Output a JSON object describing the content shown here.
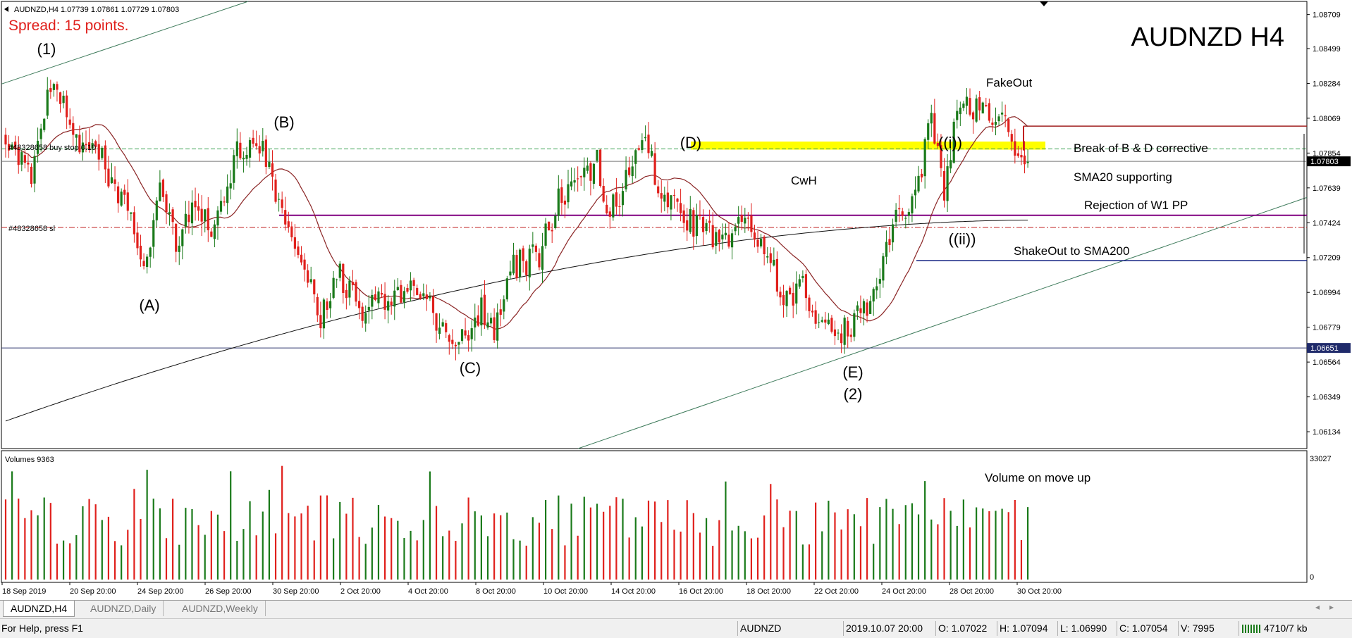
{
  "window": {
    "symbol_header": "AUDNZD,H4  1.07739 1.07861 1.07729 1.07803",
    "spread": "Spread: 15 points.",
    "big_title": "AUDNZD H4"
  },
  "price_axis": {
    "ticks": [
      "1.08709",
      "1.08499",
      "1.08284",
      "1.08069",
      "1.07854",
      "1.07639",
      "1.07424",
      "1.07209",
      "1.06994",
      "1.06779",
      "1.06564",
      "1.06349",
      "1.06134"
    ],
    "current_price": "1.07803",
    "marked_price": "1.06651"
  },
  "orders": {
    "buy_stop": "#48328658 buy stop 0.10",
    "stop_loss": "#48328658 sl"
  },
  "annotations": {
    "wave_1": "(1)",
    "wave_a": "(A)",
    "wave_b": "(B)",
    "wave_c": "(C)",
    "wave_d": "(D)",
    "wave_e": "(E)",
    "wave_2": "(2)",
    "wave_i": "((i))",
    "wave_ii": "((ii))",
    "fakeout": "FakeOut",
    "break_bd": "Break of B & D corrective",
    "sma20": "SMA20 supporting",
    "rejection": "Rejection of W1 PP",
    "shakeout": "ShakeOut to SMA200",
    "cwh": "CwH",
    "volume_note": "Volume on move up"
  },
  "volume_panel": {
    "label": "Volumes 9363",
    "max_tick": "33027",
    "min_tick": "0"
  },
  "time_axis": {
    "labels": [
      "18 Sep 2019",
      "20 Sep 20:00",
      "24 Sep 20:00",
      "26 Sep 20:00",
      "30 Sep 20:00",
      "2 Oct 20:00",
      "4 Oct 20:00",
      "8 Oct 20:00",
      "10 Oct 20:00",
      "14 Oct 20:00",
      "16 Oct 20:00",
      "18 Oct 20:00",
      "22 Oct 20:00",
      "24 Oct 20:00",
      "28 Oct 20:00",
      "30 Oct 20:00"
    ]
  },
  "tabs": [
    {
      "label": "AUDNZD,H4",
      "active": true
    },
    {
      "label": "AUDNZD,Daily",
      "active": false
    },
    {
      "label": "AUDNZD,Weekly",
      "active": false
    }
  ],
  "status": {
    "help": "For Help, press F1",
    "symbol": "AUDNZD",
    "datetime": "2019.10.07 20:00",
    "open": "O: 1.07022",
    "high": "H: 1.07094",
    "low": "L: 1.06990",
    "close": "C: 1.07054",
    "volume": "V: 7995",
    "traffic": "4710/7 kb"
  },
  "colors": {
    "bull": "#1a7a1a",
    "bear": "#e0201c",
    "sma20": "#8b2525",
    "sma200": "#111111",
    "trendline": "#3d7a5a",
    "zone": "#ffff00",
    "pivot_line": "#800080",
    "spread_text": "#e0201c"
  },
  "chart_data": {
    "type": "candlestick",
    "symbol": "AUDNZD",
    "timeframe": "H4",
    "ylim": [
      1.0603,
      1.0879
    ],
    "anchors": [
      [
        0,
        1.0798
      ],
      [
        8,
        1.0775
      ],
      [
        14,
        1.0832
      ],
      [
        22,
        1.0792
      ],
      [
        30,
        1.078
      ],
      [
        38,
        1.0748
      ],
      [
        44,
        1.0718
      ],
      [
        48,
        1.076
      ],
      [
        54,
        1.0722
      ],
      [
        58,
        1.0758
      ],
      [
        64,
        1.074
      ],
      [
        72,
        1.0785
      ],
      [
        80,
        1.0792
      ],
      [
        86,
        1.0745
      ],
      [
        92,
        1.0718
      ],
      [
        98,
        1.0685
      ],
      [
        104,
        1.071
      ],
      [
        110,
        1.069
      ],
      [
        118,
        1.0692
      ],
      [
        124,
        1.0702
      ],
      [
        130,
        1.07
      ],
      [
        136,
        1.0675
      ],
      [
        142,
        1.0673
      ],
      [
        148,
        1.069
      ],
      [
        152,
        1.0678
      ],
      [
        158,
        1.0715
      ],
      [
        166,
        1.0722
      ],
      [
        172,
        1.0758
      ],
      [
        180,
        1.077
      ],
      [
        184,
        1.078
      ],
      [
        188,
        1.0748
      ],
      [
        194,
        1.0772
      ],
      [
        198,
        1.08
      ],
      [
        204,
        1.0762
      ],
      [
        212,
        1.0745
      ],
      [
        218,
        1.0738
      ],
      [
        222,
        1.0725
      ],
      [
        228,
        1.0745
      ],
      [
        236,
        1.0728
      ],
      [
        242,
        1.0695
      ],
      [
        248,
        1.0702
      ],
      [
        254,
        1.068
      ],
      [
        258,
        1.067
      ],
      [
        264,
        1.068
      ],
      [
        270,
        1.07
      ],
      [
        276,
        1.0745
      ],
      [
        282,
        1.0752
      ],
      [
        288,
        1.0805
      ],
      [
        292,
        1.0765
      ],
      [
        296,
        1.0812
      ],
      [
        302,
        1.0815
      ],
      [
        306,
        1.0808
      ],
      [
        310,
        1.0812
      ],
      [
        314,
        1.0778
      ],
      [
        318,
        1.078
      ]
    ],
    "volume_max": 33027
  }
}
